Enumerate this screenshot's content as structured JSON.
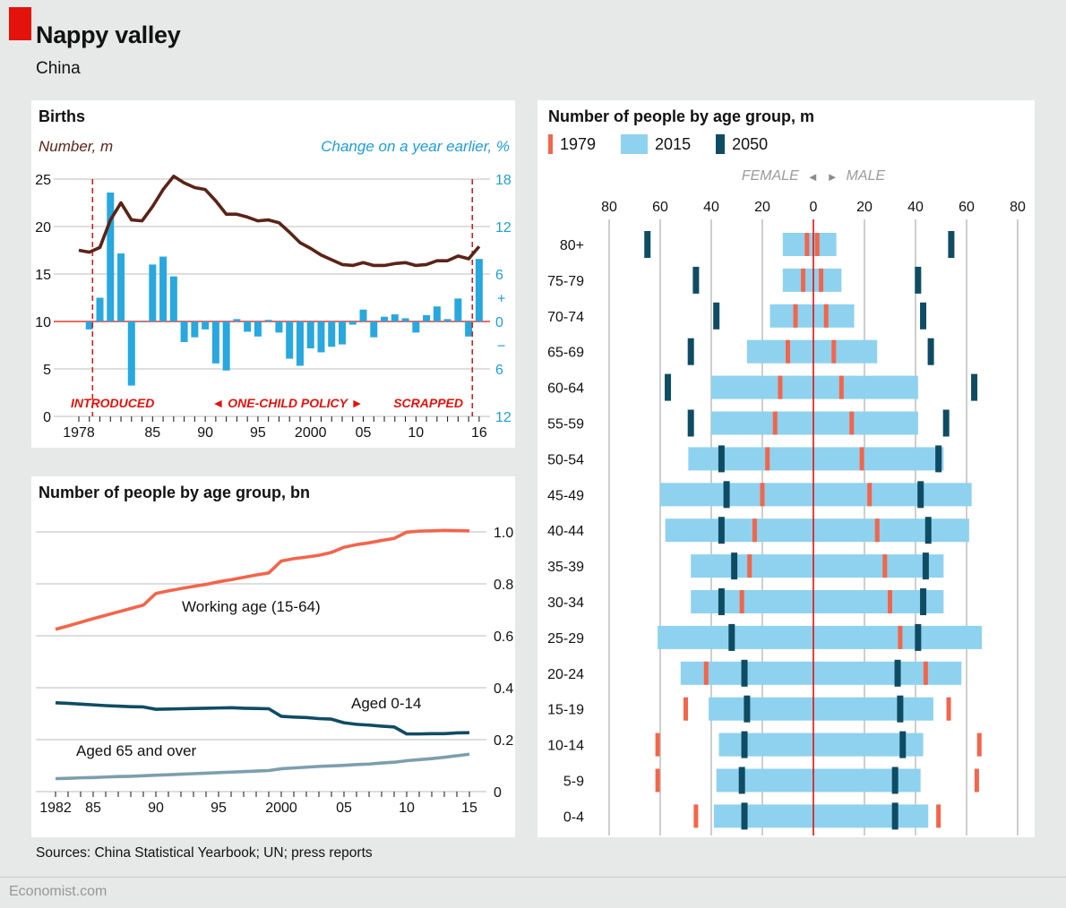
{
  "page": {
    "title": "Nappy valley",
    "subtitle": "China",
    "sources": "Sources: China Statistical Yearbook; UN; press reports",
    "site": "Economist.com"
  },
  "colors": {
    "brand_red": "#e3120b",
    "births_line": "#5b2317",
    "change_bars": "#28a8de",
    "blue_label": "#1d9ed8",
    "light_blue_2015": "#8ed2ef",
    "navy_2050": "#0f4c64",
    "orange_1979": "#f3654b",
    "working_line": "#f3654b",
    "aged014_line": "#0f4c64",
    "aged65_line": "#7e9eae",
    "grid": "#c9c9c9"
  },
  "chart_data": [
    {
      "id": "births",
      "type": "line+bar",
      "title": "Births",
      "left_axis": {
        "label": "Number, m",
        "ticks": [
          25,
          20,
          15,
          10,
          5,
          0
        ],
        "range": [
          0,
          25
        ]
      },
      "right_axis": {
        "label": "Change on a year earlier, %",
        "ticks": [
          18,
          12,
          6,
          0,
          6,
          12
        ],
        "signs": [
          "+",
          "−"
        ],
        "range": [
          -12,
          18
        ]
      },
      "x_axis": {
        "range": [
          1978,
          2016
        ],
        "ticks": [
          {
            "year": 1978,
            "label": "1978"
          },
          {
            "year": 1985,
            "label": "85"
          },
          {
            "year": 1990,
            "label": "90"
          },
          {
            "year": 1995,
            "label": "95"
          },
          {
            "year": 2000,
            "label": "2000"
          },
          {
            "year": 2005,
            "label": "05"
          },
          {
            "year": 2010,
            "label": "10"
          },
          {
            "year": 2016,
            "label": "16"
          }
        ]
      },
      "policy": {
        "introduced_label": "INTRODUCED",
        "policy_label": "◄ ONE-CHILD POLICY ►",
        "scrapped_label": "SCRAPPED",
        "line_years": [
          1979.3,
          2015.35
        ]
      },
      "years": [
        1978,
        1979,
        1980,
        1981,
        1982,
        1983,
        1984,
        1985,
        1986,
        1987,
        1988,
        1989,
        1990,
        1991,
        1992,
        1993,
        1994,
        1995,
        1996,
        1997,
        1998,
        1999,
        2000,
        2001,
        2002,
        2003,
        2004,
        2005,
        2006,
        2007,
        2008,
        2009,
        2010,
        2011,
        2012,
        2013,
        2014,
        2015,
        2016
      ],
      "births_m": [
        17.5,
        17.3,
        17.8,
        20.7,
        22.5,
        20.7,
        20.6,
        22.1,
        23.9,
        25.3,
        24.6,
        24.1,
        23.9,
        22.7,
        21.3,
        21.3,
        21.0,
        20.6,
        20.7,
        20.4,
        19.4,
        18.3,
        17.7,
        17.0,
        16.5,
        16.0,
        15.9,
        16.2,
        15.9,
        15.9,
        16.1,
        16.2,
        15.9,
        16.0,
        16.4,
        16.4,
        16.9,
        16.6,
        17.9
      ],
      "change_years": [
        1979,
        1980,
        1981,
        1982,
        1983,
        1984,
        1985,
        1986,
        1987,
        1988,
        1989,
        1990,
        1991,
        1992,
        1993,
        1994,
        1995,
        1996,
        1997,
        1998,
        1999,
        2000,
        2001,
        2002,
        2003,
        2004,
        2005,
        2006,
        2007,
        2008,
        2009,
        2010,
        2011,
        2012,
        2013,
        2014,
        2015,
        2016
      ],
      "change_pct": [
        -1.0,
        3.0,
        16.3,
        8.6,
        -8.1,
        -0.1,
        7.2,
        8.2,
        5.7,
        -2.6,
        -2.0,
        -1.0,
        -5.3,
        -6.2,
        0.3,
        -1.3,
        -1.9,
        0.2,
        -1.4,
        -4.7,
        -5.6,
        -3.4,
        -3.9,
        -3.2,
        -2.9,
        -0.4,
        1.5,
        -2.0,
        0.6,
        0.9,
        0.4,
        -1.4,
        0.8,
        1.9,
        0.3,
        2.9,
        -1.9,
        7.9
      ]
    },
    {
      "id": "age_groups_bn",
      "type": "line",
      "title": "Number of people by age group, bn",
      "y_axis": {
        "ticks": [
          1.0,
          0.8,
          0.6,
          0.4,
          0.2,
          0
        ],
        "range": [
          0,
          1.0
        ]
      },
      "x_axis": {
        "range": [
          1982,
          2015
        ],
        "ticks": [
          {
            "year": 1982,
            "label": "1982"
          },
          {
            "year": 1985,
            "label": "85"
          },
          {
            "year": 1990,
            "label": "90"
          },
          {
            "year": 1995,
            "label": "95"
          },
          {
            "year": 2000,
            "label": "2000"
          },
          {
            "year": 2005,
            "label": "05"
          },
          {
            "year": 2010,
            "label": "10"
          },
          {
            "year": 2015,
            "label": "15"
          }
        ]
      },
      "years": [
        1982,
        1983,
        1984,
        1985,
        1986,
        1987,
        1988,
        1989,
        1990,
        1991,
        1992,
        1993,
        1994,
        1995,
        1996,
        1997,
        1998,
        1999,
        2000,
        2001,
        2002,
        2003,
        2004,
        2005,
        2006,
        2007,
        2008,
        2009,
        2010,
        2011,
        2012,
        2013,
        2014,
        2015
      ],
      "series": [
        {
          "name": "Working age (15-64)",
          "color_key": "working_line",
          "values": [
            0.625,
            0.638,
            0.652,
            0.666,
            0.679,
            0.692,
            0.705,
            0.718,
            0.763,
            0.773,
            0.782,
            0.79,
            0.798,
            0.808,
            0.816,
            0.825,
            0.834,
            0.842,
            0.888,
            0.897,
            0.903,
            0.91,
            0.921,
            0.941,
            0.951,
            0.958,
            0.967,
            0.975,
            0.999,
            1.003,
            1.004,
            1.006,
            1.005,
            1.004
          ]
        },
        {
          "name": "Aged 0-14",
          "color_key": "aged014_line",
          "values": [
            0.342,
            0.34,
            0.337,
            0.334,
            0.331,
            0.329,
            0.327,
            0.326,
            0.317,
            0.318,
            0.319,
            0.32,
            0.321,
            0.322,
            0.323,
            0.321,
            0.32,
            0.319,
            0.29,
            0.287,
            0.285,
            0.281,
            0.279,
            0.265,
            0.259,
            0.256,
            0.252,
            0.249,
            0.222,
            0.222,
            0.223,
            0.223,
            0.226,
            0.227
          ]
        },
        {
          "name": "Aged 65 and over",
          "color_key": "aged65_line",
          "values": [
            0.05,
            0.051,
            0.053,
            0.054,
            0.056,
            0.058,
            0.059,
            0.061,
            0.063,
            0.065,
            0.067,
            0.069,
            0.071,
            0.073,
            0.075,
            0.077,
            0.079,
            0.081,
            0.088,
            0.091,
            0.094,
            0.097,
            0.099,
            0.101,
            0.104,
            0.106,
            0.11,
            0.113,
            0.119,
            0.123,
            0.127,
            0.132,
            0.138,
            0.144
          ]
        }
      ]
    },
    {
      "id": "pyramid",
      "type": "population-pyramid",
      "title": "Number of people by age group, m",
      "legend": [
        {
          "label": "1979",
          "color_key": "orange_1979"
        },
        {
          "label": "2015",
          "color_key": "light_blue_2015"
        },
        {
          "label": "2050",
          "color_key": "navy_2050"
        }
      ],
      "female_label": "FEMALE",
      "male_label": "MALE",
      "arrows": {
        "left": "◄",
        "right": "►"
      },
      "x_ticks": [
        80,
        60,
        40,
        20,
        0,
        20,
        40,
        60,
        80
      ],
      "age_groups": [
        "80+",
        "75-79",
        "70-74",
        "65-69",
        "60-64",
        "55-59",
        "50-54",
        "45-49",
        "40-44",
        "35-39",
        "30-34",
        "25-29",
        "20-24",
        "15-19",
        "10-14",
        "5-9",
        "0-4"
      ],
      "series": {
        "y1979": {
          "female": [
            2.5,
            4,
            7,
            10,
            13,
            15,
            18,
            20,
            23,
            25,
            28,
            32,
            42,
            50,
            61,
            61,
            46
          ],
          "male": [
            1.5,
            3,
            5,
            8,
            11,
            15,
            19,
            22,
            25,
            28,
            30,
            34,
            44,
            53,
            65,
            64,
            49
          ]
        },
        "y2015": {
          "female": [
            12,
            12,
            17,
            26,
            40,
            40,
            49,
            60,
            58,
            48,
            48,
            61,
            52,
            41,
            37,
            38,
            39
          ],
          "male": [
            9,
            11,
            16,
            25,
            41,
            41,
            51,
            62,
            61,
            51,
            51,
            66,
            58,
            47,
            43,
            42,
            45
          ]
        },
        "y2050": {
          "female": [
            65,
            46,
            38,
            48,
            57,
            48,
            36,
            34,
            36,
            31,
            36,
            32,
            27,
            26,
            27,
            28,
            27
          ],
          "male": [
            54,
            41,
            43,
            46,
            63,
            52,
            49,
            42,
            45,
            44,
            43,
            41,
            33,
            34,
            35,
            32,
            32
          ]
        }
      }
    }
  ]
}
